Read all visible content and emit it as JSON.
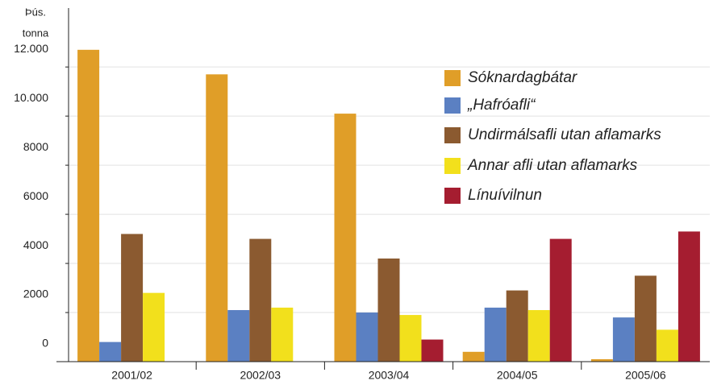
{
  "chart_data": {
    "type": "bar",
    "ylabel_lines": [
      "Þús.",
      "tonna"
    ],
    "categories": [
      "2001/02",
      "2002/03",
      "2003/04",
      "2004/05",
      "2005/06"
    ],
    "series": [
      {
        "name": "Sóknardagbátar",
        "color": "#e09e28",
        "values": [
          12700,
          11700,
          10100,
          400,
          100
        ]
      },
      {
        "name": "„Hafróafli“",
        "color": "#5b80c2",
        "values": [
          800,
          2100,
          2000,
          2200,
          1800
        ]
      },
      {
        "name": "Undirmálsafli utan aflamarks",
        "color": "#8b5a30",
        "values": [
          5200,
          5000,
          4200,
          2900,
          3500
        ]
      },
      {
        "name": "Annar afli utan aflamarks",
        "color": "#f2e01c",
        "values": [
          2800,
          2200,
          1900,
          2100,
          1300
        ]
      },
      {
        "name": "Línuívilnun",
        "color": "#a51d30",
        "values": [
          0,
          0,
          900,
          5000,
          5300
        ]
      }
    ],
    "ylim": [
      0,
      14400
    ],
    "yticks": [
      0,
      2000,
      4000,
      6000,
      8000,
      {
        "value": 10000,
        "label": "10.000"
      },
      {
        "value": 12000,
        "label": "12.000"
      }
    ],
    "grid": true
  }
}
